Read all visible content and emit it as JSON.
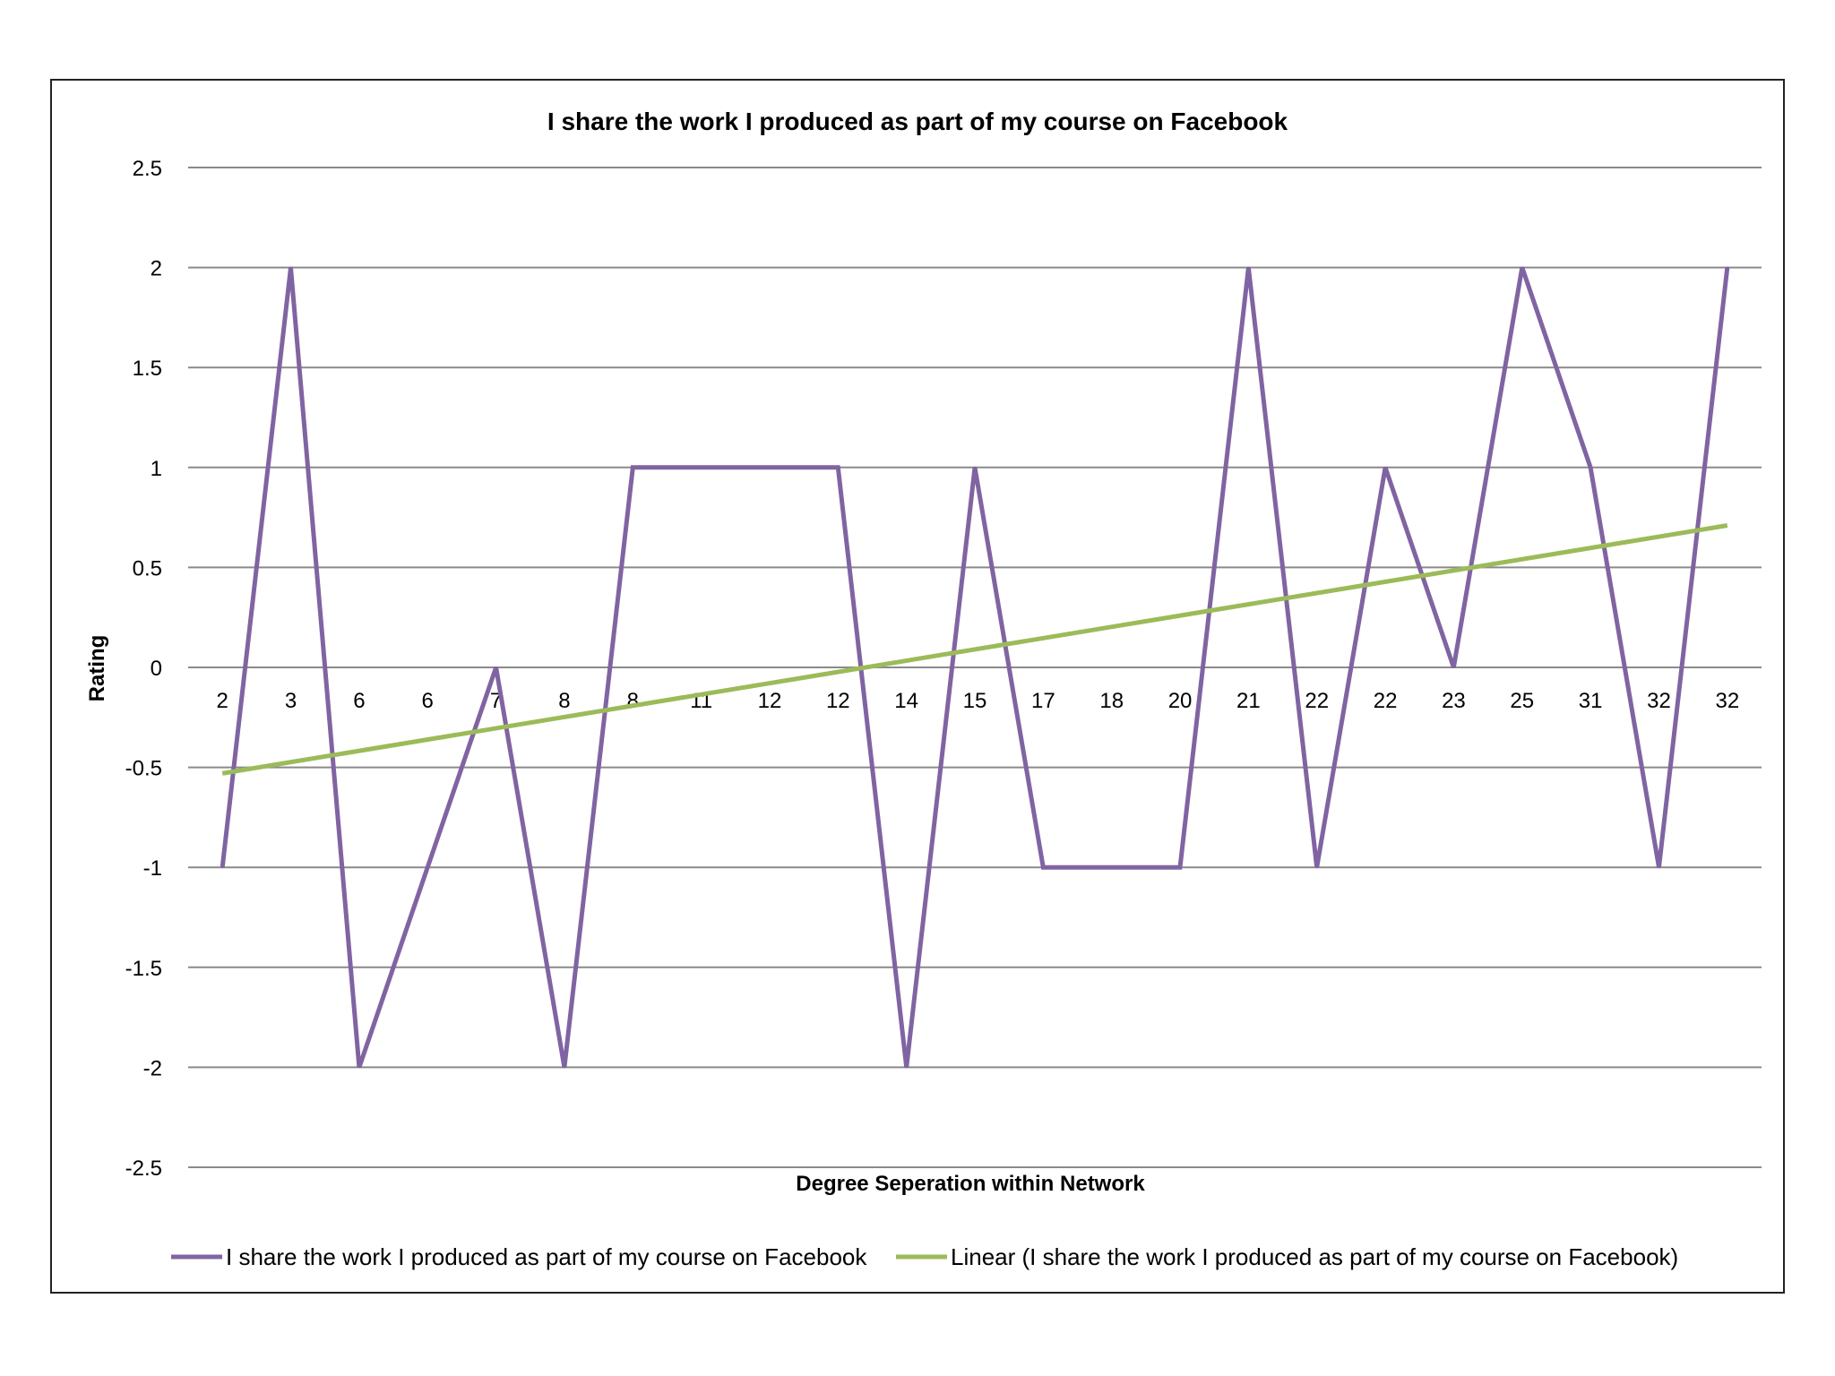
{
  "chart_data": {
    "type": "line",
    "title": "I share the work I produced as part of my course on Facebook",
    "xlabel": "Degree Seperation within Network",
    "ylabel": "Rating",
    "ylim": [
      -2.5,
      2.5
    ],
    "yticks": [
      "2.5",
      "2",
      "1.5",
      "1",
      "0.5",
      "0",
      "-0.5",
      "-1",
      "-1.5",
      "-2",
      "-2.5"
    ],
    "ytick_values": [
      2.5,
      2,
      1.5,
      1,
      0.5,
      0,
      -0.5,
      -1,
      -1.5,
      -2,
      -2.5
    ],
    "grid": true,
    "legend_position": "bottom",
    "categories": [
      "2",
      "3",
      "6",
      "6",
      "7",
      "8",
      "8",
      "11",
      "12",
      "12",
      "14",
      "15",
      "17",
      "18",
      "20",
      "21",
      "22",
      "22",
      "23",
      "25",
      "31",
      "32",
      "32"
    ],
    "series": [
      {
        "name": "I share the work I produced as part of my course on Facebook",
        "color": "#8064a2",
        "values": [
          -1,
          2,
          -2,
          -1,
          0,
          -2,
          1,
          1,
          1,
          1,
          -2,
          1,
          -1,
          -1,
          -1,
          2,
          -1,
          1,
          0,
          2,
          1,
          -1,
          2
        ]
      },
      {
        "name": "Linear (I share the work I produced as part of my course on Facebook)",
        "color": "#9bbb59",
        "kind": "trendline",
        "start": -0.53,
        "end": 0.71
      }
    ]
  }
}
